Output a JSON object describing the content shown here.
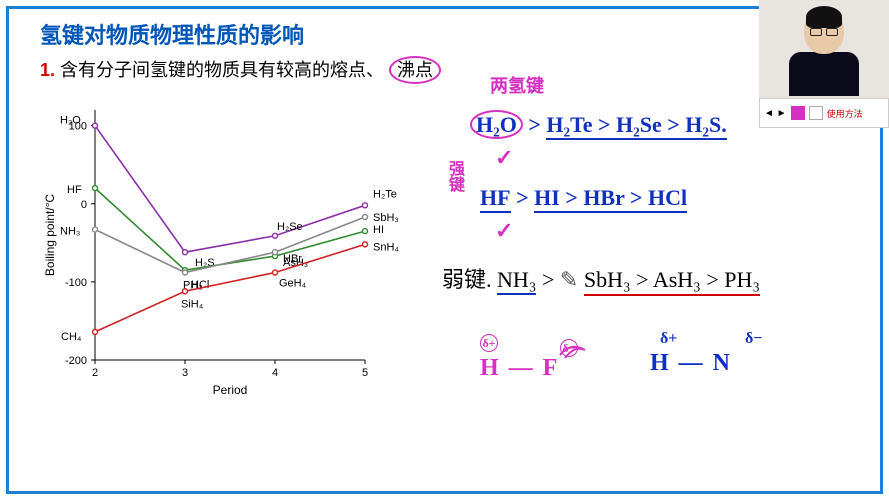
{
  "title_text": "氢键对物质物理性质的影响",
  "title_color": "#0055b8",
  "subtitle_num": "1.",
  "subtitle_text": "含有分子间氢键的物质具有较高的熔点、",
  "subtitle_circled": "沸点",
  "annot_hbond": "两氢键",
  "annot_strong1": "强键",
  "annot_weak": "弱键.",
  "check": "✓",
  "line1_a": "H₂O",
  "line1_b": "H₂Te > H₂Se > H₂S.",
  "line2_a": "HF",
  "line2_b": "HI > HBr > HCl",
  "line3_a": "NH₃",
  "line3_b": "SbH₃ > AsH₃ > PH₃",
  "bottom_hf": "H — F",
  "bottom_hn": "H — N",
  "delta_plus": "δ+",
  "delta_minus": "δ−",
  "pencil": "✎",
  "gt": ">",
  "toolbar_label": "使用方法",
  "toolbar_arrow": "◄  ►",
  "chart": {
    "xlabel": "Period",
    "ylabel": "Boiling point/°C",
    "xticks": [
      "2",
      "3",
      "4",
      "5"
    ],
    "yticks": [
      "-200",
      "-100",
      "0",
      "100"
    ],
    "series": [
      {
        "color": "#8a2fa8",
        "pts": [
          [
            2,
            100
          ],
          [
            3,
            -62
          ],
          [
            4,
            -41
          ],
          [
            5,
            -2
          ]
        ],
        "labels": [
          "H₂O",
          "H₂S",
          "H₂Se",
          "H₂Te"
        ]
      },
      {
        "color": "#2e8b2e",
        "pts": [
          [
            2,
            20
          ],
          [
            3,
            -85
          ],
          [
            4,
            -67
          ],
          [
            5,
            -35
          ]
        ],
        "labels": [
          "HF",
          "HCl",
          "HBr",
          "HI"
        ]
      },
      {
        "color": "#888888",
        "pts": [
          [
            2,
            -33
          ],
          [
            3,
            -88
          ],
          [
            4,
            -62
          ],
          [
            5,
            -17
          ]
        ],
        "labels": [
          "NH₃",
          "PH₃",
          "AsH₃",
          "SbH₃"
        ]
      },
      {
        "color": "#d02020",
        "pts": [
          [
            2,
            -164
          ],
          [
            3,
            -112
          ],
          [
            4,
            -88
          ],
          [
            5,
            -52
          ]
        ],
        "labels": [
          "CH₄",
          "SiH₄",
          "GeH₄",
          "SnH₄"
        ]
      }
    ]
  }
}
